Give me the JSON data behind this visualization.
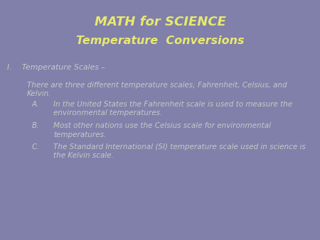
{
  "title1": "MATH for SCIENCE",
  "title2": "Temperature  Conversions",
  "title_color": "#E8E870",
  "body_color": "#C8C8C8",
  "background_color": "#8080AA",
  "section_heading": "I.    Temperature Scales –",
  "intro_line1": "There are three different temperature scales; Fahrenheit, Celsius, and",
  "intro_line2": "Kelvin.",
  "items": [
    {
      "label": "A.",
      "line1": "In the United States the Fahrenheit scale is used to measure the",
      "line2": "environmental temperatures."
    },
    {
      "label": "B.",
      "line1": "Most other nations use the Celsius scale for environmental",
      "line2": "temperatures."
    },
    {
      "label": "C.",
      "line1": "The Standard International (SI) temperature scale used in science is",
      "line2": "the Kelvin scale."
    }
  ],
  "title1_fontsize": 13,
  "title2_fontsize": 11.5,
  "body_fontsize": 7.5,
  "heading_fontsize": 7.8
}
